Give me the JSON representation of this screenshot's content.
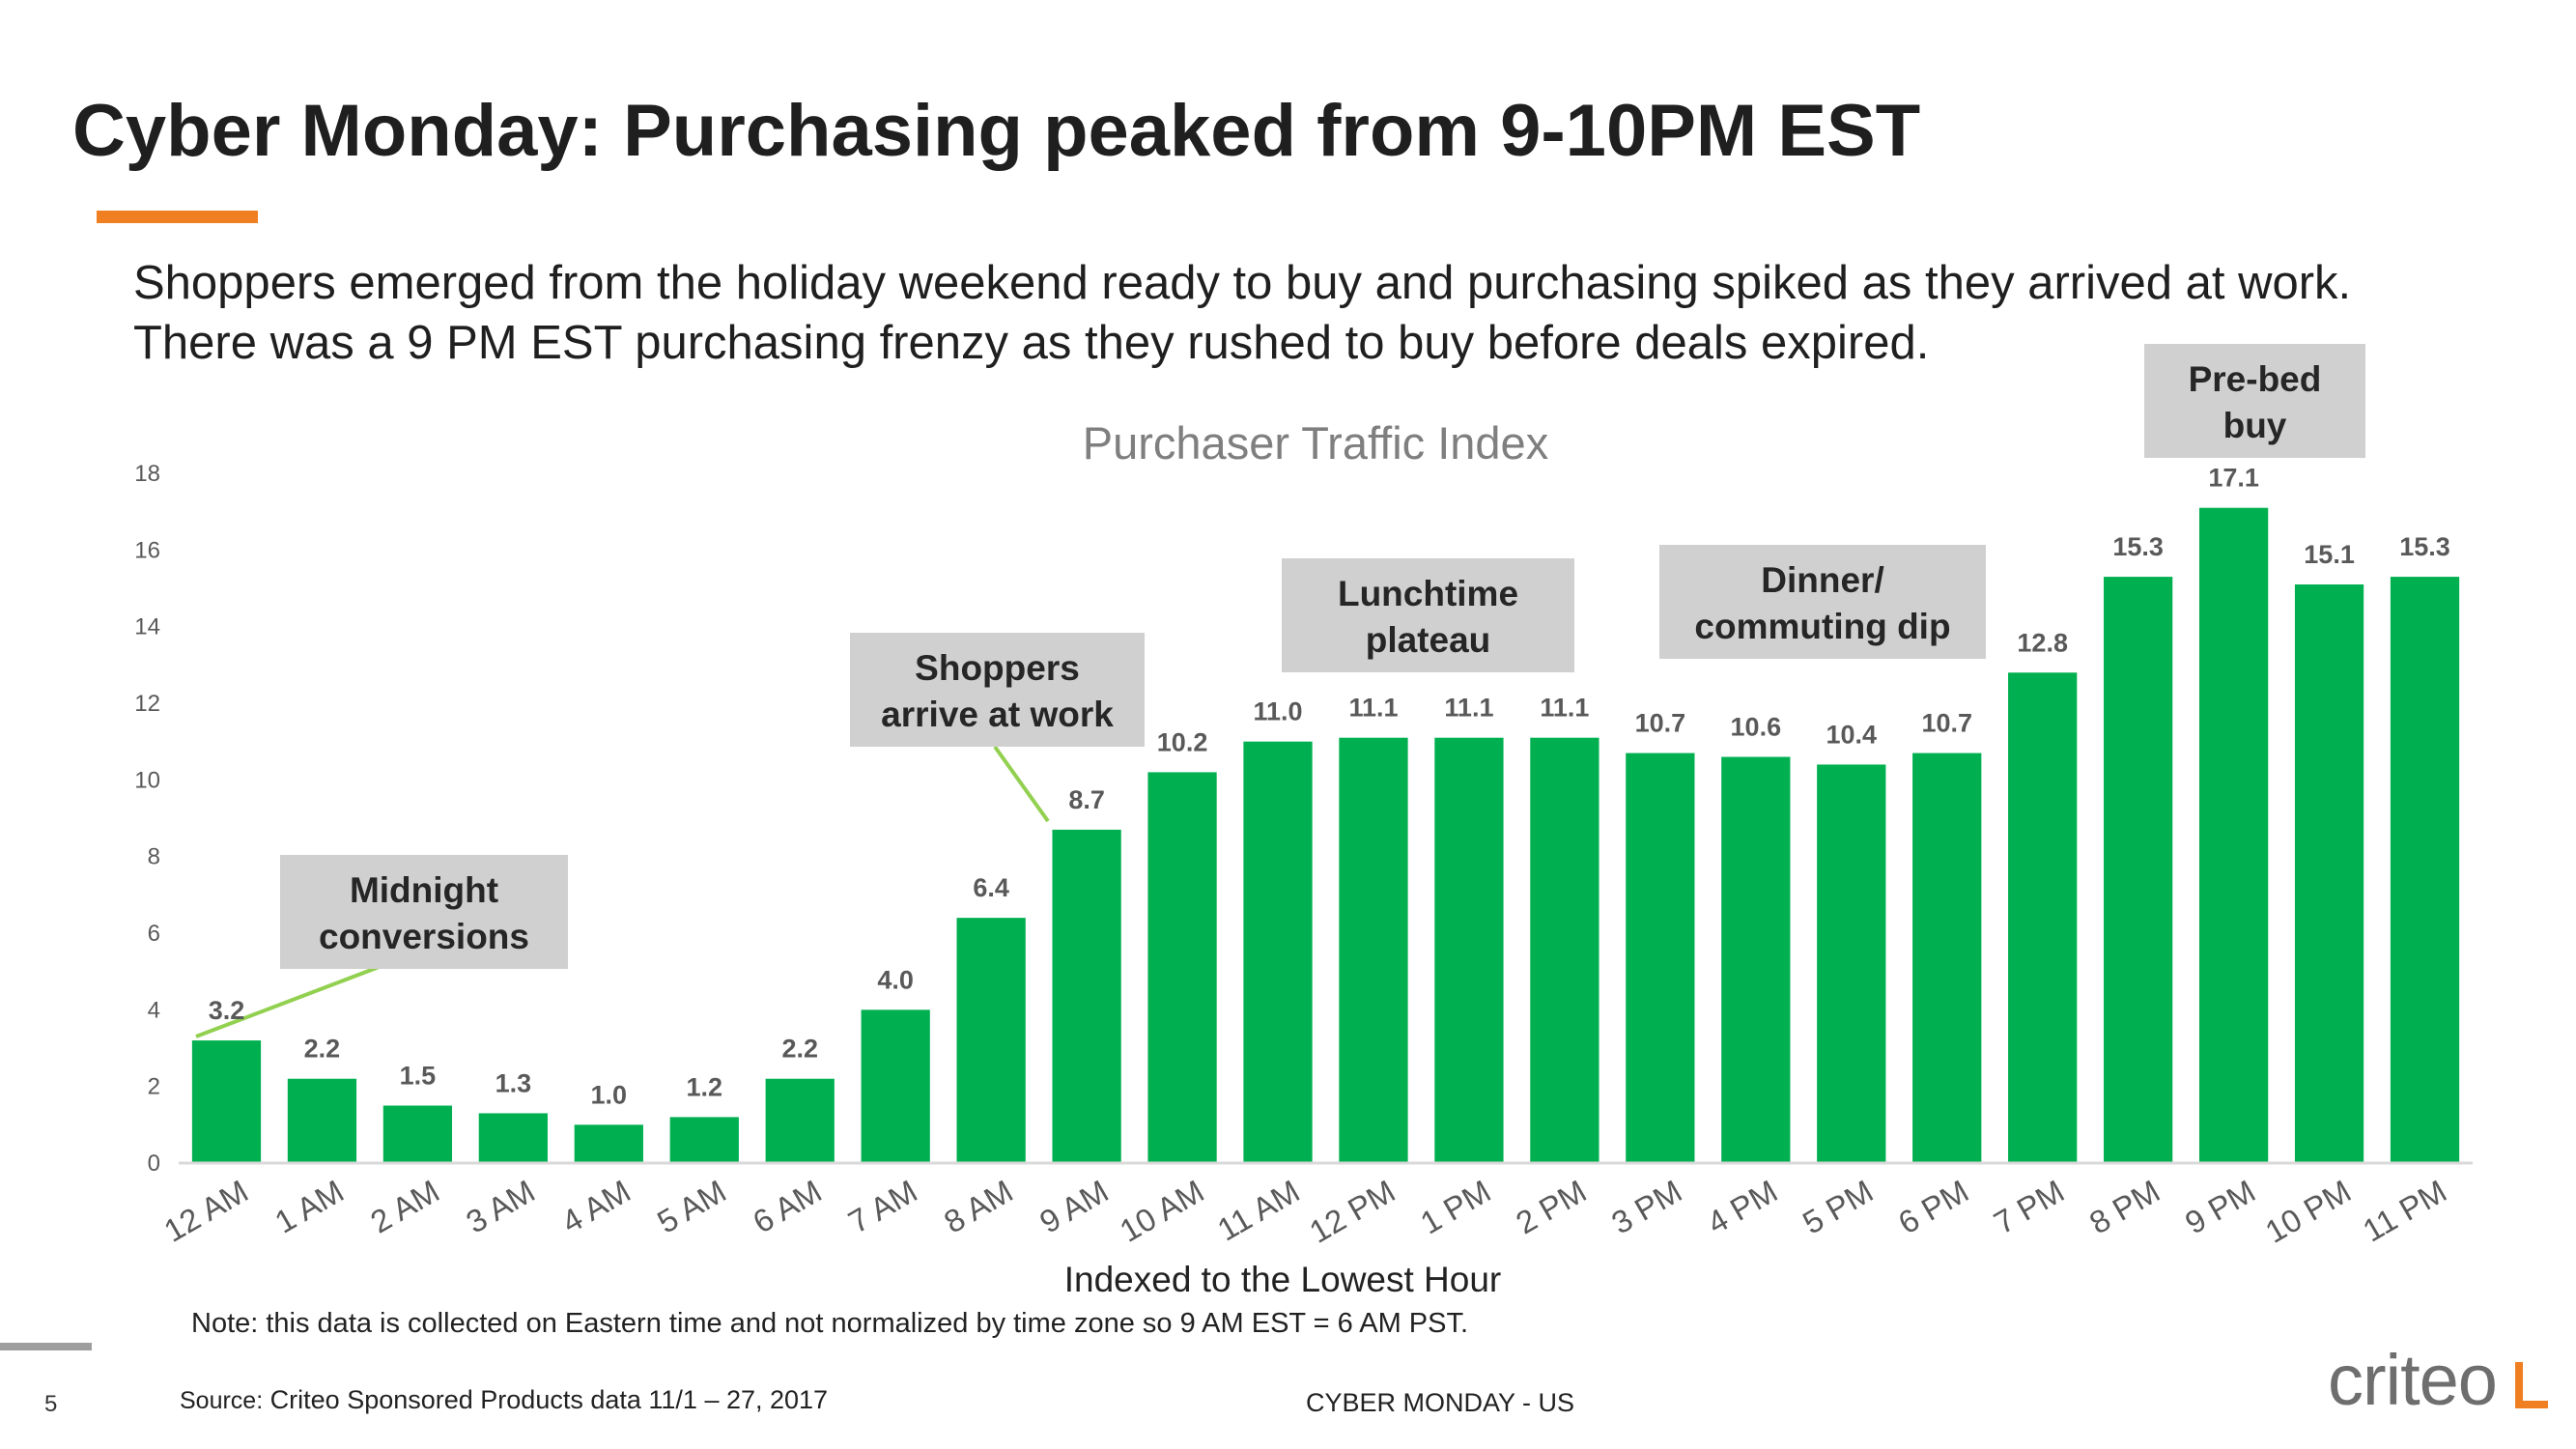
{
  "slide": {
    "title": "Cyber Monday: Purchasing peaked from 9-10PM EST",
    "subtitle": "Shoppers emerged from the holiday weekend ready to buy and purchasing spiked as they arrived at work. There was a 9 PM EST purchasing frenzy as they rushed to buy before deals expired.",
    "note": "Note: this data is collected on Eastern time and not normalized by time zone so 9 AM EST = 6 AM PST.",
    "page_number": "5",
    "source_label": "Source:",
    "source_text": " Criteo Sponsored Products data 11/1 – 27, 2017",
    "footer_center": "CYBER MONDAY - US",
    "logo": "criteo"
  },
  "colors": {
    "bar": "#00b050",
    "annotation_bg": "#d0d0d0",
    "callout_line": "#92d050",
    "accent": "#f07f21"
  },
  "chart_data": {
    "type": "bar",
    "title": "Purchaser Traffic Index",
    "xlabel": "Indexed to the Lowest Hour",
    "ylabel": "",
    "ylim": [
      0,
      18
    ],
    "yticks": [
      0,
      2,
      4,
      6,
      8,
      10,
      12,
      14,
      16,
      18
    ],
    "grid": false,
    "categories": [
      "12 AM",
      "1 AM",
      "2 AM",
      "3 AM",
      "4 AM",
      "5 AM",
      "6 AM",
      "7 AM",
      "8 AM",
      "9 AM",
      "10 AM",
      "11 AM",
      "12 PM",
      "1 PM",
      "2 PM",
      "3 PM",
      "4 PM",
      "5 PM",
      "6 PM",
      "7 PM",
      "8 PM",
      "9 PM",
      "10 PM",
      "11 PM"
    ],
    "values": [
      3.2,
      2.2,
      1.5,
      1.3,
      1.0,
      1.2,
      2.2,
      4.0,
      6.4,
      8.7,
      10.2,
      11.0,
      11.1,
      11.1,
      11.1,
      10.7,
      10.6,
      10.4,
      10.7,
      12.8,
      15.3,
      17.1,
      15.1,
      15.3
    ],
    "annotations": [
      {
        "lines": [
          "Midnight",
          "conversions"
        ],
        "category": "12 AM"
      },
      {
        "lines": [
          "Shoppers",
          "arrive at work"
        ],
        "category": "9 AM"
      },
      {
        "lines": [
          "Lunchtime",
          "plateau"
        ],
        "category": "1 PM"
      },
      {
        "lines": [
          "Dinner/",
          "commuting dip"
        ],
        "category": "5 PM"
      },
      {
        "lines": [
          "Pre-bed",
          "buy"
        ],
        "category": "9 PM"
      }
    ]
  }
}
